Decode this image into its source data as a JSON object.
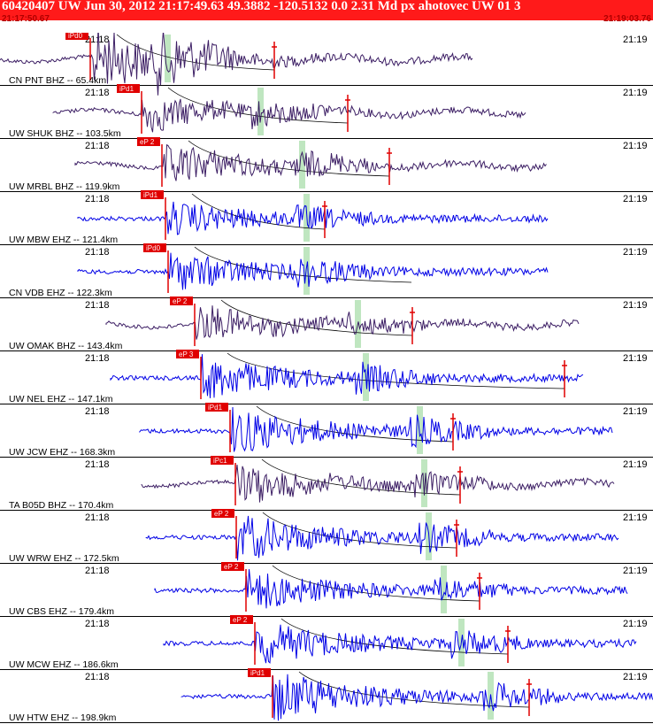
{
  "header": {
    "title": "60420407 UW Jun 30, 2012 21:17:49.63    49.3882 -120.5132  0.0 2.31 Md px ahotovec UW 01   3",
    "start_time": "21:17:50.67",
    "end_time": "21:19:03.76"
  },
  "colors": {
    "title_bar": "#ff1a1a",
    "broadband_trace": "#3c1e64",
    "short_period_trace": "#0000e6",
    "pick_marker": "#e00000",
    "s_window": "#bfe6c0",
    "moveout_curve": "#000000"
  },
  "time_labels": {
    "left": "21:18",
    "right": "21:19"
  },
  "traces": [
    {
      "label": "CN PNT BHZ -- 65.4km",
      "pick": "iPd0",
      "kind": "broadband"
    },
    {
      "label": "UW SHUK BHZ -- 103.5km",
      "pick": "iPd1",
      "kind": "broadband"
    },
    {
      "label": "UW MRBL BHZ -- 119.9km",
      "pick": "eP 2",
      "kind": "broadband"
    },
    {
      "label": "UW MBW EHZ -- 121.4km",
      "pick": "iPd1",
      "kind": "short"
    },
    {
      "label": "CN VDB EHZ -- 122.3km",
      "pick": "iPd0",
      "kind": "short"
    },
    {
      "label": "UW OMAK BHZ -- 143.4km",
      "pick": "eP 2",
      "kind": "broadband"
    },
    {
      "label": "UW NEL EHZ -- 147.1km",
      "pick": "eP 3",
      "kind": "short"
    },
    {
      "label": "UW JCW EHZ -- 168.3km",
      "pick": "iPd1",
      "kind": "short"
    },
    {
      "label": "TA B05D BHZ -- 170.4km",
      "pick": "iPc1",
      "kind": "broadband"
    },
    {
      "label": "UW WRW EHZ -- 172.5km",
      "pick": "eP 2",
      "kind": "short"
    },
    {
      "label": "UW CBS EHZ -- 179.4km",
      "pick": "eP 2",
      "kind": "short"
    },
    {
      "label": "UW MCW EHZ -- 186.6km",
      "pick": "eP 2",
      "kind": "short"
    },
    {
      "label": "UW HTW EHZ -- 198.9km",
      "pick": "iPd1",
      "kind": "short"
    }
  ]
}
